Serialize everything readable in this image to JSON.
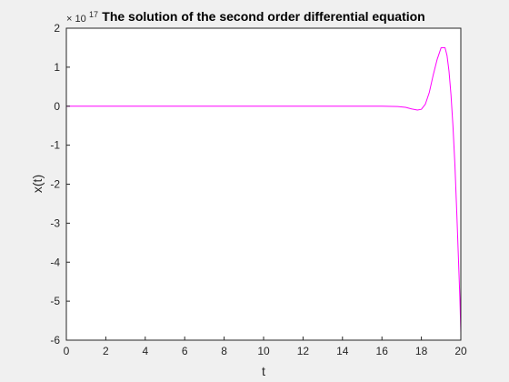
{
  "chart_data": {
    "type": "line",
    "title": "The solution of the second order differential equation",
    "xlabel": "t",
    "ylabel": "x(t)",
    "y_exponent_label": "× 10",
    "y_exponent_value": "17",
    "xlim": [
      0,
      20
    ],
    "ylim": [
      -6,
      2
    ],
    "x_ticks": [
      0,
      2,
      4,
      6,
      8,
      10,
      12,
      14,
      16,
      18,
      20
    ],
    "y_ticks": [
      -6,
      -5,
      -4,
      -3,
      -2,
      -1,
      0,
      1,
      2
    ],
    "grid": false,
    "series": [
      {
        "color": "#ff00ff",
        "x": [
          0,
          2,
          4,
          6,
          8,
          10,
          12,
          14,
          16,
          16.8,
          17.2,
          17.5,
          17.8,
          18.0,
          18.2,
          18.4,
          18.6,
          18.8,
          19.0,
          19.2,
          19.3,
          19.4,
          19.5,
          19.6,
          19.7,
          19.8,
          19.9,
          19.95,
          20.0
        ],
        "values": [
          0,
          0,
          0,
          0,
          0,
          0,
          0,
          0,
          0,
          -0.01,
          -0.03,
          -0.07,
          -0.1,
          -0.08,
          0.05,
          0.35,
          0.8,
          1.2,
          1.5,
          1.5,
          1.3,
          0.9,
          0.3,
          -0.5,
          -1.5,
          -2.8,
          -4.2,
          -4.9,
          -5.8
        ]
      }
    ]
  }
}
